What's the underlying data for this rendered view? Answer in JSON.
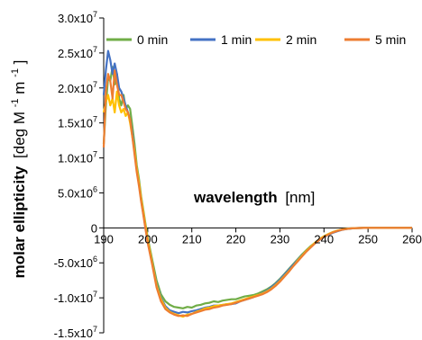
{
  "chart_data": {
    "type": "line",
    "xlabel_bold": "wavelength",
    "xlabel_unit": "[nm]",
    "ylabel_bold": "molar ellipticity",
    "ylabel_unit_parts": [
      "[deg M",
      "-1",
      " m",
      "-1",
      "]"
    ],
    "xlim": [
      190,
      260
    ],
    "ylim": [
      -15000000,
      30000000
    ],
    "x_ticks": [
      190,
      200,
      210,
      220,
      230,
      240,
      250,
      260
    ],
    "y_ticks": [
      {
        "value": 30000000,
        "mant": "3.0x10",
        "exp": "7"
      },
      {
        "value": 25000000,
        "mant": "2.5x10",
        "exp": "7"
      },
      {
        "value": 20000000,
        "mant": "2.0x10",
        "exp": "7"
      },
      {
        "value": 15000000,
        "mant": "1.5x10",
        "exp": "7"
      },
      {
        "value": 10000000,
        "mant": "1.0x10",
        "exp": "7"
      },
      {
        "value": 5000000,
        "mant": "5.0x10",
        "exp": "6"
      },
      {
        "value": 0,
        "mant": "0",
        "exp": ""
      },
      {
        "value": -5000000,
        "mant": "-5.0x10",
        "exp": "6"
      },
      {
        "value": -10000000,
        "mant": "-1.0x10",
        "exp": "7"
      },
      {
        "value": -15000000,
        "mant": "-1.5x10",
        "exp": "7"
      }
    ],
    "legend_position": "top",
    "series": [
      {
        "name": "0 min",
        "color": "#70ad47",
        "x": [
          190,
          190.5,
          191,
          191.5,
          192,
          192.5,
          193,
          193.5,
          194,
          194.5,
          195,
          195.5,
          196,
          196.5,
          197,
          197.5,
          198,
          198.5,
          199,
          199.5,
          200,
          201,
          202,
          203,
          204,
          205,
          206,
          207,
          208,
          209,
          210,
          211,
          212,
          213,
          214,
          215,
          216,
          217,
          218,
          219,
          220,
          221,
          222,
          223,
          224,
          225,
          226,
          227,
          228,
          229,
          230,
          231,
          232,
          233,
          234,
          235,
          236,
          237,
          238,
          239,
          240,
          241,
          242,
          243,
          244,
          245,
          246,
          247,
          248,
          249,
          250,
          252,
          254,
          256,
          258,
          260
        ],
        "y": [
          12000000,
          17500000,
          21500000,
          21000000,
          23000000,
          20500000,
          22000000,
          18500000,
          17500000,
          19000000,
          17000000,
          17500000,
          17000000,
          14500000,
          12000000,
          9000000,
          7000000,
          4500000,
          2500000,
          500000,
          -1500000,
          -4500000,
          -7500000,
          -9500000,
          -10500000,
          -11000000,
          -11300000,
          -11400000,
          -11500000,
          -11300000,
          -11400000,
          -11100000,
          -11000000,
          -10800000,
          -10700000,
          -10500000,
          -10600000,
          -10400000,
          -10300000,
          -10200000,
          -10200000,
          -10000000,
          -9800000,
          -9700000,
          -9600000,
          -9400000,
          -9100000,
          -8800000,
          -8400000,
          -7900000,
          -7300000,
          -6600000,
          -5900000,
          -5200000,
          -4500000,
          -3800000,
          -3200000,
          -2600000,
          -2100000,
          -1600000,
          -1200000,
          -900000,
          -600000,
          -400000,
          -250000,
          -150000,
          -80000,
          -40000,
          -20000,
          -10000,
          0,
          0,
          0,
          0,
          0,
          0
        ]
      },
      {
        "name": "1 min",
        "color": "#4472c4",
        "x": [
          190,
          190.5,
          191,
          191.5,
          192,
          192.5,
          193,
          193.5,
          194,
          194.5,
          195,
          195.5,
          196,
          196.5,
          197,
          197.5,
          198,
          198.5,
          199,
          199.5,
          200,
          201,
          202,
          203,
          204,
          205,
          206,
          207,
          208,
          209,
          210,
          211,
          212,
          213,
          214,
          215,
          216,
          217,
          218,
          219,
          220,
          221,
          222,
          223,
          224,
          225,
          226,
          227,
          228,
          229,
          230,
          231,
          232,
          233,
          234,
          235,
          236,
          237,
          238,
          239,
          240,
          241,
          242,
          243,
          244,
          245,
          246,
          247,
          248,
          249,
          250,
          252,
          254,
          256,
          258,
          260
        ],
        "y": [
          19000000,
          22500000,
          25300000,
          24000000,
          22000000,
          23500000,
          22000000,
          20000000,
          19500000,
          18500000,
          17500000,
          16500000,
          15500000,
          13500000,
          11000000,
          8500000,
          6500000,
          4000000,
          2000000,
          0,
          -2000000,
          -5000000,
          -8000000,
          -10000000,
          -11200000,
          -11800000,
          -12000000,
          -12200000,
          -12000000,
          -12100000,
          -11900000,
          -11800000,
          -11600000,
          -11400000,
          -11300000,
          -11100000,
          -11100000,
          -11000000,
          -10900000,
          -10900000,
          -10800000,
          -10500000,
          -10300000,
          -10100000,
          -9900000,
          -9600000,
          -9300000,
          -9000000,
          -8500000,
          -8000000,
          -7400000,
          -6700000,
          -6000000,
          -5300000,
          -4600000,
          -3900000,
          -3300000,
          -2700000,
          -2200000,
          -1700000,
          -1300000,
          -1000000,
          -700000,
          -500000,
          -300000,
          -180000,
          -100000,
          -50000,
          -20000,
          -10000,
          0,
          0,
          0,
          0,
          0,
          0
        ]
      },
      {
        "name": "2 min",
        "color": "#ffc000",
        "x": [
          190,
          190.5,
          191,
          191.5,
          192,
          192.5,
          193,
          193.5,
          194,
          194.5,
          195,
          195.5,
          196,
          196.5,
          197,
          197.5,
          198,
          198.5,
          199,
          199.5,
          200,
          201,
          202,
          203,
          204,
          205,
          206,
          207,
          208,
          209,
          210,
          211,
          212,
          213,
          214,
          215,
          216,
          217,
          218,
          219,
          220,
          221,
          222,
          223,
          224,
          225,
          226,
          227,
          228,
          229,
          230,
          231,
          232,
          233,
          234,
          235,
          236,
          237,
          238,
          239,
          240,
          241,
          242,
          243,
          244,
          245,
          246,
          247,
          248,
          249,
          250,
          252,
          254,
          256,
          258,
          260
        ],
        "y": [
          16500000,
          18000000,
          19000000,
          17500000,
          18500000,
          16500000,
          19500000,
          17500000,
          16500000,
          17000000,
          16000000,
          16500000,
          15000000,
          13000000,
          11000000,
          8500000,
          6500000,
          4200000,
          2200000,
          200000,
          -1800000,
          -5000000,
          -8200000,
          -10200000,
          -11400000,
          -12000000,
          -12300000,
          -12500000,
          -12700000,
          -12400000,
          -12300000,
          -12000000,
          -11800000,
          -11500000,
          -11400000,
          -11200000,
          -11100000,
          -11000000,
          -10900000,
          -10800000,
          -10600000,
          -10400000,
          -10200000,
          -10000000,
          -9800000,
          -9600000,
          -9400000,
          -9100000,
          -8700000,
          -8200000,
          -7600000,
          -6900000,
          -6200000,
          -5500000,
          -4700000,
          -4000000,
          -3300000,
          -2700000,
          -2100000,
          -1600000,
          -1200000,
          -900000,
          -600000,
          -400000,
          -250000,
          -150000,
          -80000,
          -40000,
          -20000,
          -10000,
          0,
          0,
          0,
          0,
          0,
          0
        ]
      },
      {
        "name": "5 min",
        "color": "#ed7d31",
        "x": [
          190,
          190.5,
          191,
          191.5,
          192,
          192.5,
          193,
          193.5,
          194,
          194.5,
          195,
          195.5,
          196,
          196.5,
          197,
          197.5,
          198,
          198.5,
          199,
          199.5,
          200,
          201,
          202,
          203,
          204,
          205,
          206,
          207,
          208,
          209,
          210,
          211,
          212,
          213,
          214,
          215,
          216,
          217,
          218,
          219,
          220,
          221,
          222,
          223,
          224,
          225,
          226,
          227,
          228,
          229,
          230,
          231,
          232,
          233,
          234,
          235,
          236,
          237,
          238,
          239,
          240,
          241,
          242,
          243,
          244,
          245,
          246,
          247,
          248,
          249,
          250,
          252,
          254,
          256,
          258,
          260
        ],
        "y": [
          11500000,
          19500000,
          22000000,
          21000000,
          18500000,
          22500000,
          20500000,
          19000000,
          19000000,
          18000000,
          17000000,
          16500000,
          15500000,
          13000000,
          10500000,
          8000000,
          6000000,
          3800000,
          1800000,
          -200000,
          -2200000,
          -5200000,
          -8500000,
          -10500000,
          -11600000,
          -12100000,
          -12400000,
          -12600000,
          -12500000,
          -12600000,
          -12300000,
          -12100000,
          -11900000,
          -11700000,
          -11600000,
          -11400000,
          -11300000,
          -11100000,
          -11000000,
          -10900000,
          -10700000,
          -10500000,
          -10300000,
          -10100000,
          -9900000,
          -9700000,
          -9500000,
          -9200000,
          -8800000,
          -8300000,
          -7700000,
          -7000000,
          -6300000,
          -5500000,
          -4800000,
          -4100000,
          -3400000,
          -2800000,
          -2200000,
          -1700000,
          -1300000,
          -950000,
          -650000,
          -450000,
          -280000,
          -170000,
          -90000,
          -45000,
          -20000,
          -10000,
          0,
          0,
          0,
          0,
          0,
          0
        ]
      }
    ]
  }
}
